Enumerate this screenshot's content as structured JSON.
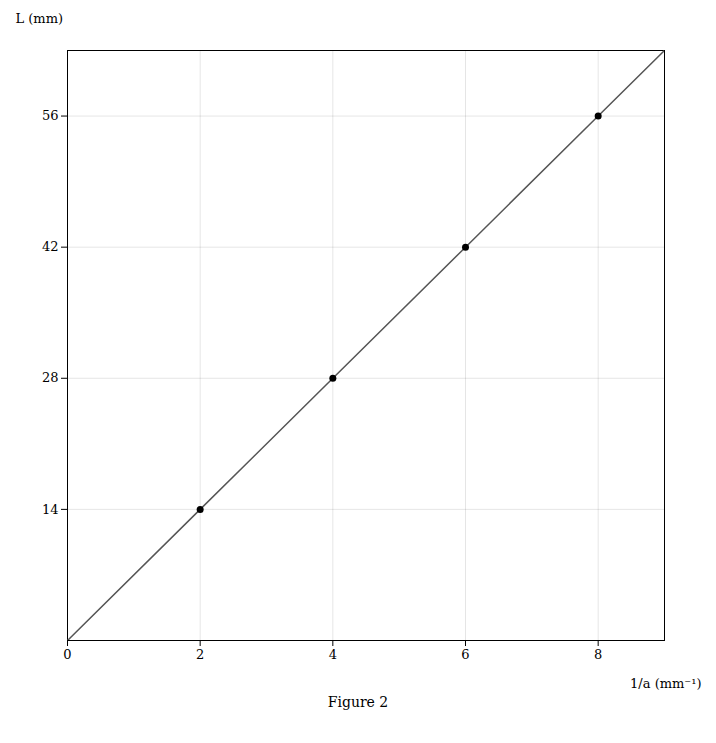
{
  "chart_data": {
    "type": "line",
    "title": "Figure 2",
    "xlabel": "1/a (mm⁻¹)",
    "ylabel": "L (mm)",
    "x": [
      0,
      2,
      4,
      6,
      8,
      9
    ],
    "series": [
      {
        "type": "line",
        "color": "#555555",
        "values": [
          0,
          14,
          28,
          42,
          56,
          63
        ]
      },
      {
        "type": "scatter",
        "color": "#000000",
        "values": [
          null,
          14,
          28,
          42,
          56,
          null
        ]
      }
    ],
    "xlim": [
      0,
      9
    ],
    "xticks": [
      0,
      2,
      4,
      6,
      8
    ],
    "ylim": [
      0,
      63
    ],
    "yticks": [
      14,
      28,
      42,
      56
    ],
    "grid": true
  }
}
